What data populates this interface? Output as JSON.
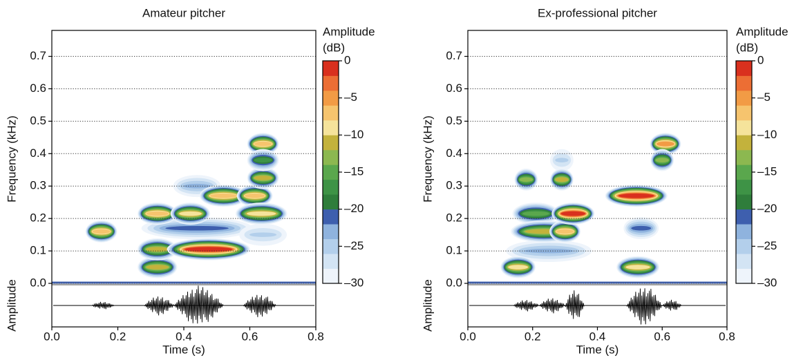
{
  "chart_data": [
    {
      "type": "spectrogram",
      "title": "Amateur pitcher",
      "x_label": "Time (s)",
      "y_label": "Frequency (kHz)",
      "amplitude_label": "Amplitude",
      "colorbar_title": "Amplitude",
      "colorbar_unit": "(dB)",
      "xlim": [
        0,
        0.8
      ],
      "xticks": [
        {
          "value": 0,
          "label": "0.0"
        },
        0.2,
        0.4,
        0.6,
        0.8
      ],
      "ylim": [
        0,
        0.78
      ],
      "yticks": [
        {
          "value": 0,
          "label": "0.0"
        },
        0.1,
        0.2,
        0.3,
        0.4,
        0.5,
        0.6,
        0.7
      ],
      "grid": true,
      "clim": [
        -30,
        0
      ],
      "cticks": [
        0,
        {
          "value": -5,
          "label": "–5"
        },
        {
          "value": -10,
          "label": "–10"
        },
        {
          "value": -15,
          "label": "–15"
        },
        {
          "value": -20,
          "label": "–20"
        },
        {
          "value": -25,
          "label": "–25"
        },
        {
          "value": -30,
          "label": "–30"
        }
      ],
      "colormap": [
        "#eef4fb",
        "#d3e4f4",
        "#b3cfeb",
        "#8fb3de",
        "#3e5fae",
        "#2f7d3b",
        "#3e9346",
        "#5aa74d",
        "#8cb850",
        "#c3b23c",
        "#f5e39b",
        "#f6c46e",
        "#f29b45",
        "#ec6e34",
        "#d9301e"
      ],
      "blobs": [
        {
          "t": [
            0.38,
            0.5
          ],
          "f": 0.3,
          "db": -24
        },
        {
          "t": [
            0.3,
            0.58
          ],
          "f": 0.17,
          "db": -22
        },
        {
          "t": [
            0.58,
            0.7
          ],
          "f": 0.15,
          "db": -25
        },
        {
          "t": [
            0.11,
            0.19
          ],
          "f": 0.16,
          "db": -8
        },
        {
          "t": [
            0.27,
            0.37
          ],
          "f": 0.215,
          "db": -8
        },
        {
          "t": [
            0.37,
            0.47
          ],
          "f": 0.215,
          "db": -10
        },
        {
          "t": [
            0.27,
            0.37
          ],
          "f": 0.05,
          "db": -12
        },
        {
          "t": [
            0.27,
            0.37
          ],
          "f": 0.105,
          "db": -12
        },
        {
          "t": [
            0.37,
            0.58
          ],
          "f": 0.105,
          "db": -1
        },
        {
          "t": [
            0.46,
            0.58
          ],
          "f": 0.27,
          "db": -8
        },
        {
          "t": [
            0.57,
            0.66
          ],
          "f": 0.27,
          "db": -8
        },
        {
          "t": [
            0.57,
            0.7
          ],
          "f": 0.215,
          "db": -9
        },
        {
          "t": [
            0.6,
            0.68
          ],
          "f": 0.43,
          "db": -8
        },
        {
          "t": [
            0.6,
            0.68
          ],
          "f": 0.325,
          "db": -12
        },
        {
          "t": [
            0.6,
            0.68
          ],
          "f": 0.38,
          "db": -17
        }
      ],
      "waveform": [
        {
          "t": [
            0.12,
            0.19
          ],
          "amp": 0.2
        },
        {
          "t": [
            0.28,
            0.37
          ],
          "amp": 0.5
        },
        {
          "t": [
            0.37,
            0.52
          ],
          "amp": 1.0
        },
        {
          "t": [
            0.58,
            0.68
          ],
          "amp": 0.6
        }
      ]
    },
    {
      "type": "spectrogram",
      "title": "Ex-professional pitcher",
      "x_label": "Time (s)",
      "y_label": "Frequency (kHz)",
      "amplitude_label": "Amplitude",
      "colorbar_title": "Amplitude",
      "colorbar_unit": "(dB)",
      "xlim": [
        0,
        0.8
      ],
      "xticks": [
        {
          "value": 0,
          "label": "0.0"
        },
        0.2,
        0.4,
        0.6,
        0.8
      ],
      "ylim": [
        0,
        0.78
      ],
      "yticks": [
        {
          "value": 0,
          "label": "0.0"
        },
        0.1,
        0.2,
        0.3,
        0.4,
        0.5,
        0.6,
        0.7
      ],
      "grid": true,
      "clim": [
        -30,
        0
      ],
      "cticks": [
        0,
        {
          "value": -5,
          "label": "–5"
        },
        {
          "value": -10,
          "label": "–10"
        },
        {
          "value": -15,
          "label": "–15"
        },
        {
          "value": -20,
          "label": "–20"
        },
        {
          "value": -25,
          "label": "–25"
        },
        {
          "value": -30,
          "label": "–30"
        }
      ],
      "colormap": [
        "#eef4fb",
        "#d3e4f4",
        "#b3cfeb",
        "#8fb3de",
        "#3e5fae",
        "#2f7d3b",
        "#3e9346",
        "#5aa74d",
        "#8cb850",
        "#c3b23c",
        "#f5e39b",
        "#f6c46e",
        "#f29b45",
        "#ec6e34",
        "#d9301e"
      ],
      "blobs": [
        {
          "t": [
            0.49,
            0.58
          ],
          "f": 0.17,
          "db": -22
        },
        {
          "t": [
            0.26,
            0.32
          ],
          "f": 0.38,
          "db": -25
        },
        {
          "t": [
            0.14,
            0.36
          ],
          "f": 0.1,
          "db": -24
        },
        {
          "t": [
            0.11,
            0.2
          ],
          "f": 0.05,
          "db": -9
        },
        {
          "t": [
            0.15,
            0.21
          ],
          "f": 0.32,
          "db": -14
        },
        {
          "t": [
            0.26,
            0.32
          ],
          "f": 0.32,
          "db": -12
        },
        {
          "t": [
            0.15,
            0.27
          ],
          "f": 0.215,
          "db": -15
        },
        {
          "t": [
            0.15,
            0.32
          ],
          "f": 0.16,
          "db": -12
        },
        {
          "t": [
            0.26,
            0.34
          ],
          "f": 0.16,
          "db": -8
        },
        {
          "t": [
            0.27,
            0.38
          ],
          "f": 0.215,
          "db": -1
        },
        {
          "t": [
            0.44,
            0.6
          ],
          "f": 0.27,
          "db": 0
        },
        {
          "t": [
            0.47,
            0.58
          ],
          "f": 0.05,
          "db": -9
        },
        {
          "t": [
            0.57,
            0.65
          ],
          "f": 0.43,
          "db": -6
        },
        {
          "t": [
            0.57,
            0.63
          ],
          "f": 0.38,
          "db": -14
        }
      ],
      "waveform": [
        {
          "t": [
            0.14,
            0.22
          ],
          "amp": 0.3
        },
        {
          "t": [
            0.22,
            0.3
          ],
          "amp": 0.4
        },
        {
          "t": [
            0.3,
            0.36
          ],
          "amp": 0.8
        },
        {
          "t": [
            0.49,
            0.6
          ],
          "amp": 1.0
        },
        {
          "t": [
            0.6,
            0.66
          ],
          "amp": 0.3
        }
      ]
    }
  ]
}
